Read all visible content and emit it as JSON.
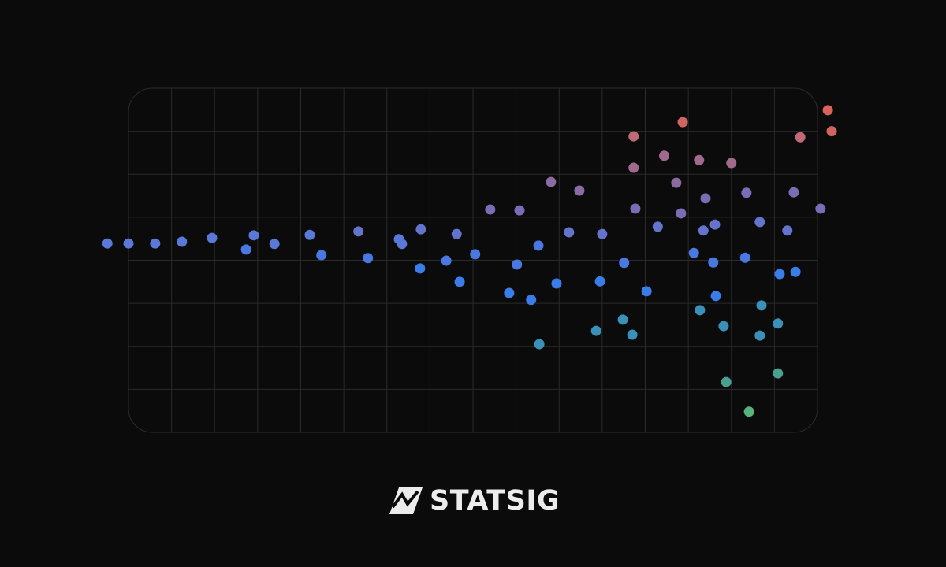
{
  "chart_data": {
    "type": "scatter",
    "x": [
      -0.49,
      0,
      0.62,
      1.24,
      1.94,
      2.73,
      2.91,
      3.39,
      4.21,
      4.48,
      5.34,
      5.56,
      6.28,
      6.35,
      6.79,
      6.77,
      7.38,
      7.62,
      7.69,
      8.05,
      8.4,
      8.84,
      9.02,
      9.08,
      9.35,
      9.52,
      9.54,
      9.81,
      9.94,
      10.23,
      10.47,
      10.86,
      10.95,
      11.0,
      11.48,
      11.51,
      11.7,
      11.73,
      11.73,
      11.77,
      12.03,
      12.29,
      12.44,
      12.72,
      12.83,
      12.87,
      13.13,
      13.25,
      13.27,
      13.35,
      13.4,
      13.58,
      13.62,
      13.64,
      13.82,
      13.88,
      14.0,
      14.32,
      14.35,
      14.41,
      14.66,
      14.66,
      14.7,
      15.08,
      15.08,
      15.12,
      15.3,
      15.45,
      15.49,
      15.6,
      16.07,
      16.24,
      16.33
    ],
    "values": [
      4.39,
      4.39,
      4.39,
      4.43,
      4.52,
      4.25,
      4.58,
      4.38,
      4.59,
      4.12,
      4.67,
      4.05,
      4.49,
      4.38,
      4.72,
      3.81,
      3.99,
      4.61,
      3.5,
      4.14,
      5.18,
      3.24,
      3.9,
      5.16,
      3.08,
      4.34,
      2.05,
      5.82,
      3.46,
      4.65,
      5.62,
      2.36,
      3.51,
      4.61,
      2.62,
      3.94,
      2.27,
      6.88,
      6.15,
      5.2,
      3.28,
      4.78,
      6.43,
      5.8,
      5.09,
      7.21,
      4.17,
      6.33,
      2.84,
      4.69,
      5.44,
      3.95,
      4.83,
      3.17,
      2.47,
      1.17,
      6.26,
      4.06,
      5.57,
      0.48,
      2.25,
      4.89,
      2.95,
      1.37,
      2.53,
      3.68,
      4.69,
      5.58,
      3.73,
      6.86,
      5.2,
      7.49,
      7.0
    ],
    "colors": [
      "#5a78d8",
      "#5a78d8",
      "#5a78d8",
      "#5a78d8",
      "#5a78d8",
      "#4a78e2",
      "#5a78d8",
      "#5a78d8",
      "#5a78d8",
      "#4a78e2",
      "#6474cc",
      "#4a78e2",
      "#5a78d8",
      "#5a78d8",
      "#6474cc",
      "#3b7de8",
      "#4a78e2",
      "#6474cc",
      "#3b7de8",
      "#4a78e2",
      "#7a6db6",
      "#3b7de8",
      "#4a78e2",
      "#7a6db6",
      "#3b7de8",
      "#4a78e2",
      "#3a90b8",
      "#8a6ca2",
      "#3b7de8",
      "#6474cc",
      "#8a6ca2",
      "#3a90b8",
      "#3b7de8",
      "#6474cc",
      "#3a90b8",
      "#4a78e2",
      "#3a90b8",
      "#c06a78",
      "#a06a8c",
      "#7a6db6",
      "#3b7de8",
      "#6474cc",
      "#a06a8c",
      "#8a6ca2",
      "#7a6db6",
      "#d0645e",
      "#4a78e2",
      "#a06a8c",
      "#3a90b8",
      "#6474cc",
      "#7a6db6",
      "#4a78e2",
      "#6474cc",
      "#3b7de8",
      "#3a90b8",
      "#4aa090",
      "#a06a8c",
      "#4a78e2",
      "#7a6db6",
      "#58b47c",
      "#3a90b8",
      "#6474cc",
      "#3a90b8",
      "#4aa090",
      "#3a90b8",
      "#3b7de8",
      "#6474cc",
      "#7a6db6",
      "#3b7de8",
      "#c06a78",
      "#7a6db6",
      "#d9625c",
      "#d0645e"
    ],
    "xlim": [
      0,
      16
    ],
    "ylim": [
      0,
      8
    ],
    "xticks": [
      0,
      1,
      2,
      3,
      4,
      5,
      6,
      7,
      8,
      9,
      10,
      11,
      12,
      13,
      14,
      15,
      16
    ],
    "yticks": [
      0,
      1,
      2,
      3,
      4,
      5,
      6,
      7,
      8
    ],
    "grid": true
  },
  "footer": {
    "logo_text": "STATSIG"
  }
}
